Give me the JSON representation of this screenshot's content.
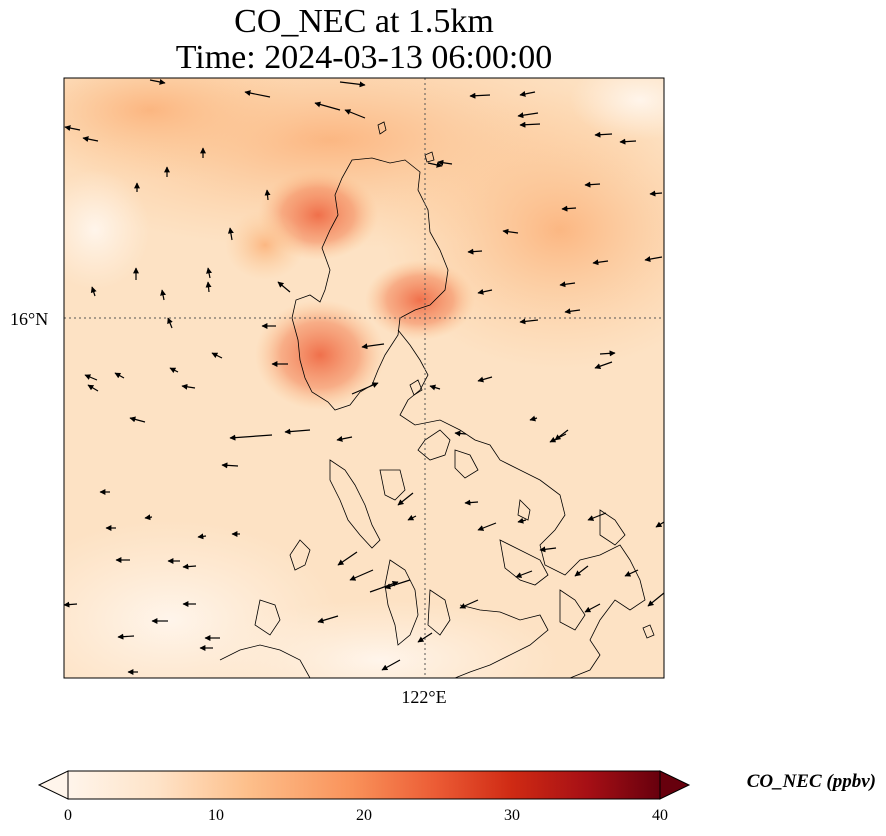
{
  "title": {
    "line1": "CO_NEC at 1.5km",
    "line2": "Time: 2024-03-13 06:00:00"
  },
  "map": {
    "lat_label": "16°N",
    "lon_label": "122°E",
    "gridline_style": "dotted",
    "field_colors": {
      "low": "#fff5eb",
      "mid": "#fdbd85",
      "high": "#f26e43"
    }
  },
  "colorbar": {
    "label": "CO_NEC (ppbv)",
    "ticks": [
      "0",
      "10",
      "20",
      "30",
      "40"
    ],
    "range": [
      0,
      40
    ],
    "colormap": "Oranges-to-darkred",
    "stops": [
      "#fff5eb",
      "#fdd0a2",
      "#fdae6b",
      "#f16913",
      "#d94801",
      "#a50f15",
      "#67000d"
    ]
  }
}
